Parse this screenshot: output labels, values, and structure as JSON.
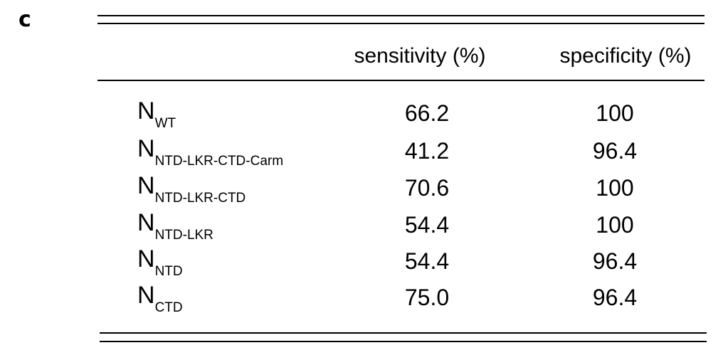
{
  "panel_label": "c",
  "table": {
    "header": [
      "sensitivity (%)",
      "specificity (%)"
    ],
    "rows": [
      [
        {
          "base": "N",
          "sub": "WT"
        },
        "66.2",
        "100"
      ],
      [
        {
          "base": "N",
          "sub": "NTD-LKR-CTD-Carm"
        },
        "41.2",
        "96.4"
      ],
      [
        {
          "base": "N",
          "sub": "NTD-LKR-CTD"
        },
        "70.6",
        "100"
      ],
      [
        {
          "base": "N",
          "sub": "NTD-LKR"
        },
        "54.4",
        "100"
      ],
      [
        {
          "base": "N",
          "sub": "NTD"
        },
        "54.4",
        "96.4"
      ],
      [
        {
          "base": "N",
          "sub": "CTD"
        },
        "75.0",
        "96.4"
      ]
    ]
  }
}
